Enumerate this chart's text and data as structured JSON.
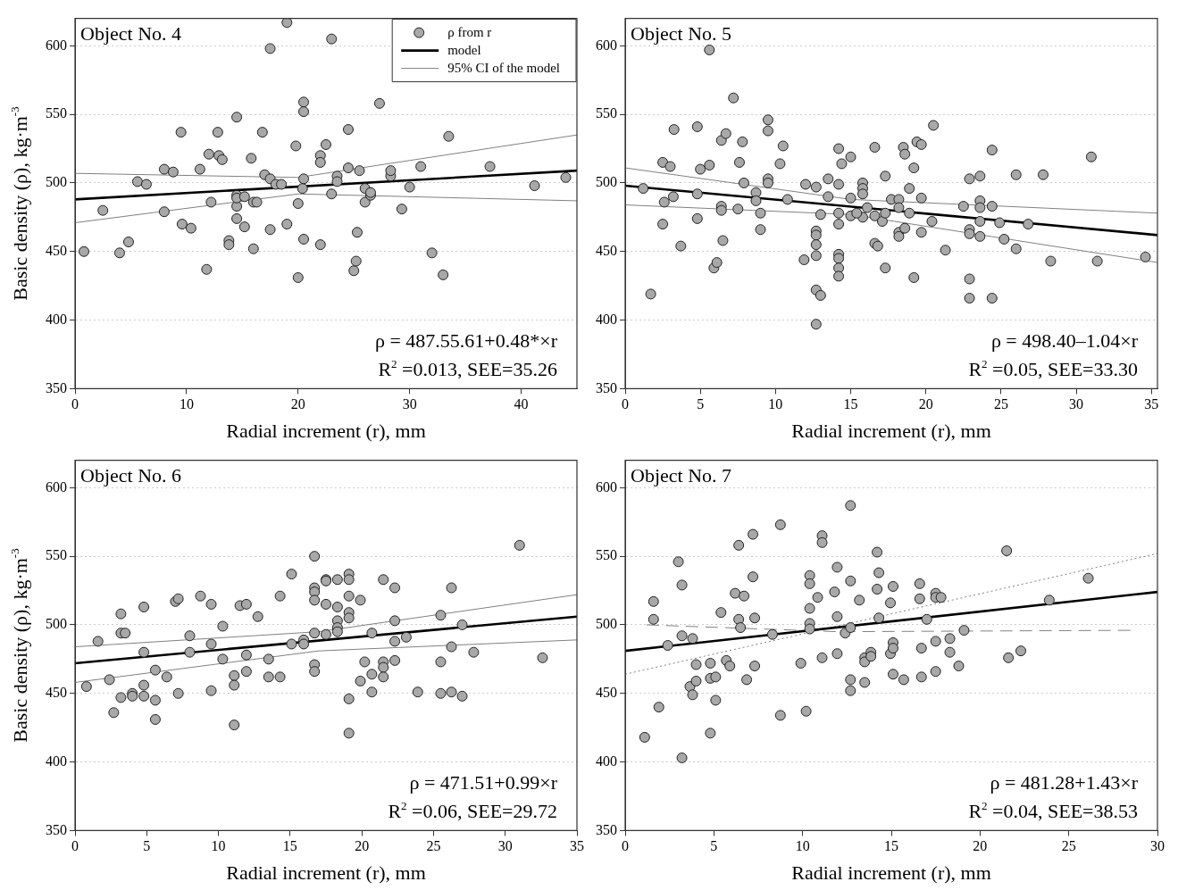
{
  "chart_data": [
    {
      "type": "scatter",
      "title": "Object No. 4",
      "xlabel": "Radial increment (r), mm",
      "ylabel": "Basic density (ρ), kg·m$^{-3}$",
      "xlim": [
        0,
        45
      ],
      "xticks": [
        0,
        10,
        20,
        30,
        40
      ],
      "ylim": [
        350,
        620
      ],
      "yticks": [
        350,
        400,
        450,
        500,
        550,
        600
      ],
      "grid": "y",
      "legend": "top right",
      "annotations": [
        "ρ = 487.55.61+0.48*×r",
        "R$^{2}$ =0.013, SEE=35.26"
      ],
      "series": [
        {
          "name": "ρ from r",
          "color": "#a8a8a8",
          "marker": "circle",
          "x": [
            0.8,
            2.5,
            4,
            4.8,
            5.6,
            6.4,
            8,
            8,
            8.8,
            9.5,
            9.6,
            10.4,
            11.2,
            11.8,
            12,
            12.2,
            12.8,
            12.9,
            13.2,
            13.8,
            13.8,
            14.5,
            14.5,
            14.5,
            14.5,
            14.5,
            15.2,
            15.2,
            15.8,
            16,
            16,
            16.3,
            16.8,
            17,
            17.5,
            17.5,
            17.5,
            18,
            18.5,
            19,
            19,
            19.8,
            20,
            20,
            20.4,
            20.5,
            20.5,
            20.5,
            20.5,
            22,
            22,
            22,
            22.5,
            23,
            23,
            23.5,
            23.5,
            24.5,
            24.5,
            25,
            25.2,
            25.3,
            25.5,
            26,
            26,
            26.5,
            26.5,
            27.3,
            28.3,
            28.3,
            29.3,
            30,
            31,
            32,
            33,
            33.5,
            37.2,
            41.2,
            44
          ],
          "values": [
            450,
            480,
            449,
            457,
            501,
            499,
            479,
            510,
            508,
            537,
            470,
            467,
            510,
            437,
            521,
            486,
            537,
            520,
            517,
            458,
            455,
            548,
            491,
            483,
            474,
            489,
            468,
            490,
            518,
            452,
            486,
            486,
            537,
            506,
            598,
            503,
            466,
            499,
            499,
            617,
            470,
            527,
            431,
            485,
            496,
            559,
            552,
            503,
            459,
            520,
            515,
            455,
            528,
            605,
            492,
            505,
            501,
            539,
            511,
            436,
            443,
            464,
            509,
            486,
            496,
            491,
            493,
            558,
            505,
            509,
            481,
            497,
            512,
            449,
            433,
            534,
            512,
            498,
            504
          ]
        },
        {
          "name": "model",
          "type": "line",
          "color": "#000000",
          "x": [
            0,
            45
          ],
          "values": [
            488,
            509
          ]
        },
        {
          "name": "95% CI of the model",
          "type": "line",
          "color": "#808080",
          "x": [
            0,
            20,
            45
          ],
          "values": [
            507,
            504,
            535
          ]
        },
        {
          "type": "line",
          "color": "#808080",
          "x": [
            0,
            20,
            45
          ],
          "values": [
            471,
            492,
            487
          ]
        }
      ]
    },
    {
      "type": "scatter",
      "title": "Object No. 5",
      "xlabel": "Radial increment (r), mm",
      "xlim": [
        0,
        35.4
      ],
      "xticks": [
        0,
        5,
        10,
        15,
        20,
        25,
        30,
        35
      ],
      "ylim": [
        350,
        620
      ],
      "yticks": [
        350,
        400,
        450,
        500,
        550,
        600
      ],
      "grid": "y",
      "annotations": [
        "ρ = 498.40–1.04×r",
        "R$^{2}$ =0.05, SEE=33.30"
      ],
      "series": [
        {
          "color": "#a8a8a8",
          "marker": "circle",
          "x": [
            1.2,
            1.7,
            2.5,
            2.5,
            2.6,
            3,
            3.2,
            3.25,
            3.7,
            4.8,
            4.8,
            4.8,
            5,
            5.6,
            5.6,
            5.9,
            6.1,
            6.4,
            6.4,
            6.4,
            6.5,
            6.7,
            7.2,
            7.5,
            7.6,
            7.8,
            7.9,
            8.7,
            8.7,
            9,
            9,
            9.5,
            9.5,
            9.5,
            9.5,
            10.3,
            10.5,
            10.8,
            11.9,
            12,
            12.7,
            12.7,
            12.7,
            12.7,
            12.7,
            12.7,
            12.7,
            13,
            13,
            13.5,
            13.5,
            14.2,
            14.4,
            14.2,
            14.2,
            14.2,
            14.2,
            14.2,
            14.2,
            14.2,
            15,
            15,
            15,
            15.8,
            15.8,
            15.8,
            15.8,
            16.1,
            15.4,
            16.6,
            16.6,
            16.6,
            16.8,
            17.1,
            17.3,
            17.3,
            17.3,
            17.7,
            18.2,
            18.2,
            18.2,
            18.2,
            18.5,
            18.6,
            18.6,
            18.9,
            18.9,
            19.2,
            19.2,
            19.4,
            19.7,
            19.7,
            19.7,
            20.4,
            20.5,
            21.3,
            22.5,
            22.9,
            22.9,
            22.9,
            22.9,
            22.9,
            23.6,
            23.6,
            23.6,
            23.6,
            23.6,
            24.4,
            24.4,
            24.4,
            24.9,
            25.2,
            26,
            26,
            26.8,
            27.8,
            28.3,
            31,
            31.4,
            34.6
          ],
          "values": [
            496,
            419,
            515,
            470,
            486,
            512,
            490,
            539,
            454,
            541,
            492,
            474,
            510,
            513,
            597,
            438,
            442,
            531,
            483,
            480,
            458,
            536,
            562,
            481,
            515,
            530,
            500,
            493,
            487,
            478,
            466,
            546,
            538,
            503,
            500,
            514,
            527,
            488,
            444,
            499,
            497,
            465,
            462,
            455,
            447,
            422,
            397,
            418,
            477,
            503,
            490,
            525,
            514,
            499,
            478,
            470,
            448,
            445,
            438,
            432,
            519,
            489,
            476,
            500,
            496,
            492,
            475,
            482,
            478,
            526,
            476,
            456,
            454,
            472,
            505,
            438,
            478,
            488,
            488,
            482,
            464,
            461,
            526,
            521,
            467,
            496,
            478,
            511,
            431,
            530,
            528,
            489,
            464,
            472,
            542,
            451,
            483,
            503,
            466,
            463,
            430,
            416,
            505,
            487,
            482,
            472,
            461,
            524,
            483,
            416,
            471,
            459,
            452,
            506,
            470,
            506,
            443,
            519,
            443,
            446
          ]
        },
        {
          "type": "line",
          "color": "#000000",
          "x": [
            0,
            35.4
          ],
          "values": [
            498,
            462
          ]
        },
        {
          "type": "line",
          "color": "#808080",
          "x": [
            0,
            15,
            35.4
          ],
          "values": [
            511,
            488,
            478
          ]
        },
        {
          "type": "line",
          "color": "#808080",
          "x": [
            0,
            15,
            35.4
          ],
          "values": [
            484,
            477,
            442
          ]
        }
      ]
    },
    {
      "type": "scatter",
      "title": "Object No. 6",
      "xlabel": "Radial increment (r), mm",
      "ylabel": "Basic density (ρ), kg·m$^{-3}$",
      "xlim": [
        0,
        35
      ],
      "xticks": [
        0,
        5,
        10,
        15,
        20,
        25,
        30,
        35
      ],
      "ylim": [
        350,
        620
      ],
      "yticks": [
        350,
        400,
        450,
        500,
        550,
        600
      ],
      "grid": "y",
      "annotations": [
        "ρ = 471.51+0.99×r",
        "R$^{2}$ =0.06, SEE=29.72"
      ],
      "series": [
        {
          "color": "#a8a8a8",
          "marker": "circle",
          "x": [
            0.8,
            1.6,
            2.4,
            2.7,
            3.2,
            3.2,
            3.2,
            3.5,
            4,
            4,
            4.8,
            4.8,
            4.8,
            4.8,
            5.6,
            5.6,
            5.6,
            6.4,
            7,
            7.2,
            7.2,
            8,
            8,
            8.75,
            9.5,
            9.5,
            9.5,
            10.3,
            10.3,
            11.1,
            11.1,
            11.1,
            11.5,
            11.95,
            11.95,
            11.95,
            12.75,
            13.5,
            13.5,
            14.3,
            14.3,
            15.1,
            15.1,
            15.95,
            15.95,
            16.7,
            16.7,
            16.7,
            16.7,
            16.7,
            16.7,
            16.7,
            17.5,
            17.5,
            17.5,
            17.5,
            18.3,
            18.3,
            18.3,
            18.3,
            18.3,
            19.1,
            19.1,
            19.1,
            19.1,
            19.1,
            19.1,
            19.1,
            19.9,
            19.9,
            20.2,
            20.7,
            20.7,
            20.7,
            21.5,
            21.5,
            21.5,
            21.5,
            22.3,
            22.3,
            22.3,
            22.3,
            23.1,
            23.9,
            25.5,
            25.5,
            25.5,
            26.25,
            26.25,
            26.25,
            27,
            27,
            27.8,
            31,
            32.6
          ],
          "values": [
            455,
            488,
            460,
            436,
            508,
            494,
            447,
            494,
            450,
            448,
            513,
            480,
            456,
            448,
            467,
            445,
            431,
            462,
            517,
            519,
            450,
            492,
            480,
            521,
            515,
            486,
            452,
            499,
            475,
            463,
            456,
            427,
            514,
            515,
            478,
            466,
            506,
            475,
            462,
            521,
            462,
            537,
            486,
            489,
            486,
            550,
            527,
            524,
            518,
            494,
            471,
            466,
            533,
            532,
            515,
            493,
            533,
            513,
            503,
            498,
            495,
            537,
            533,
            521,
            509,
            505,
            446,
            421,
            518,
            459,
            473,
            494,
            464,
            451,
            533,
            473,
            469,
            462,
            527,
            503,
            488,
            474,
            491,
            451,
            507,
            473,
            450,
            527,
            484,
            451,
            500,
            448,
            480,
            558,
            476
          ]
        },
        {
          "type": "line",
          "color": "#000000",
          "x": [
            0,
            35
          ],
          "values": [
            472,
            506
          ]
        },
        {
          "type": "line",
          "color": "#808080",
          "x": [
            0,
            17,
            35
          ],
          "values": [
            484,
            495,
            522
          ]
        },
        {
          "type": "line",
          "color": "#808080",
          "x": [
            0,
            17,
            35
          ],
          "values": [
            458,
            481,
            489
          ]
        }
      ]
    },
    {
      "type": "scatter",
      "title": "Object No. 7",
      "xlabel": "Radial increment (r), mm",
      "xlim": [
        0,
        30
      ],
      "xticks": [
        0,
        5,
        10,
        15,
        20,
        25,
        30
      ],
      "ylim": [
        350,
        620
      ],
      "yticks": [
        350,
        400,
        450,
        500,
        550,
        600
      ],
      "grid": "y",
      "annotations": [
        "ρ = 481.28+1.43×r",
        "R$^{2}$ =0.04, SEE=38.53"
      ],
      "series": [
        {
          "color": "#a8a8a8",
          "marker": "circle",
          "x": [
            1.1,
            1.6,
            1.6,
            1.9,
            2.4,
            3,
            3.2,
            3.2,
            3.2,
            3.65,
            3.8,
            3.8,
            4,
            4,
            4.8,
            4.8,
            4.8,
            5.1,
            5.1,
            5.4,
            5.7,
            5.9,
            6.2,
            6.4,
            6.4,
            6.5,
            6.7,
            6.85,
            7.2,
            7.2,
            7.3,
            7.3,
            8.3,
            8.75,
            8.75,
            9.9,
            10.2,
            10.4,
            10.4,
            10.4,
            10.4,
            10.4,
            10.85,
            11.1,
            11.1,
            11.1,
            11.8,
            11.95,
            11.95,
            11.95,
            12.4,
            12.7,
            12.7,
            12.7,
            12.7,
            12.7,
            13.2,
            13.5,
            13.5,
            13.5,
            13.85,
            13.85,
            14.2,
            14.2,
            14.3,
            14.3,
            14.95,
            14.95,
            15.1,
            15.1,
            15.1,
            15.1,
            15.7,
            16.6,
            16.6,
            16.7,
            16.7,
            17,
            17.5,
            17.5,
            17.5,
            17.5,
            17.8,
            18.3,
            18.3,
            18.8,
            19.1,
            21.5,
            21.6,
            22.3,
            23.9,
            26.1
          ],
          "values": [
            418,
            517,
            504,
            440,
            485,
            546,
            529,
            492,
            403,
            455,
            490,
            449,
            471,
            459,
            472,
            461,
            421,
            462,
            445,
            509,
            474,
            470,
            523,
            558,
            504,
            498,
            521,
            460,
            566,
            535,
            505,
            470,
            493,
            573,
            434,
            472,
            437,
            536,
            530,
            512,
            501,
            497,
            520,
            565,
            560,
            476,
            524,
            542,
            506,
            479,
            494,
            587,
            532,
            498,
            460,
            452,
            518,
            476,
            473,
            458,
            480,
            477,
            553,
            526,
            538,
            505,
            516,
            479,
            528,
            487,
            483,
            464,
            460,
            530,
            519,
            483,
            462,
            504,
            523,
            520,
            488,
            466,
            520,
            490,
            480,
            470,
            496,
            554,
            476,
            481,
            518,
            534
          ]
        },
        {
          "type": "line",
          "color": "#000000",
          "x": [
            0,
            30
          ],
          "values": [
            481,
            524
          ]
        },
        {
          "type": "line",
          "color": "#808080",
          "line_style": "dotted",
          "x": [
            0,
            30
          ],
          "values": [
            464,
            552
          ]
        },
        {
          "type": "line",
          "color": "#808080",
          "line_style": "dashed",
          "x": [
            1.2,
            12,
            28.5
          ],
          "values": [
            500,
            495,
            496
          ]
        }
      ]
    }
  ]
}
